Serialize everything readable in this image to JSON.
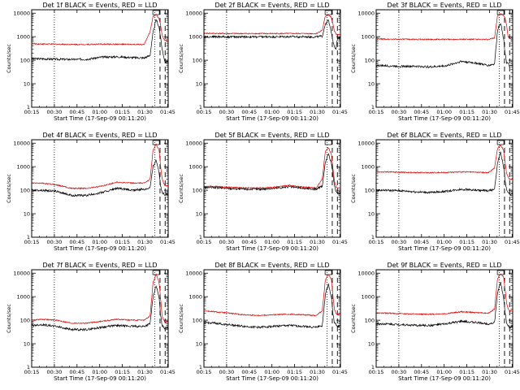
{
  "common": {
    "ylabel": "Counts/sec",
    "xlabel": "Start Time (17-Sep-09 00:11:20)",
    "xticks": [
      "00:15",
      "00:30",
      "00:45",
      "01:00",
      "01:15",
      "01:30",
      "01:45"
    ],
    "yticks": [
      "1",
      "10",
      "100",
      "1000",
      "10000"
    ],
    "black_color": "#000000",
    "red_color": "#dd0000"
  },
  "chart_data": [
    {
      "type": "line",
      "title": "Det 1f BLACK = Events, RED = LLD",
      "xlabel": "Start Time (17-Sep-09 00:11:20)",
      "ylabel": "Counts/sec",
      "yscale": "log",
      "ylim": [
        1,
        14000
      ],
      "xlim_minutes": [
        3.67,
        94
      ],
      "vlines_dotted": [
        18.67,
        85.2
      ],
      "vlines_dashed": [
        88.6,
        92
      ],
      "series": [
        {
          "name": "BLACK = Events",
          "x": [
            4,
            10,
            20,
            30,
            40,
            50,
            60,
            70,
            78,
            82,
            84,
            86,
            88,
            89,
            90,
            91,
            92,
            94
          ],
          "y": [
            115,
            115,
            110,
            108,
            110,
            135,
            140,
            130,
            125,
            160,
            1500,
            5500,
            2500,
            900,
            300,
            150,
            80,
            90
          ]
        },
        {
          "name": "RED = LLD",
          "x": [
            4,
            10,
            20,
            30,
            40,
            50,
            60,
            70,
            78,
            82,
            84,
            86,
            88,
            89,
            90,
            91,
            92,
            94
          ],
          "y": [
            500,
            490,
            480,
            470,
            470,
            480,
            480,
            470,
            460,
            1600,
            7500,
            8500,
            6000,
            3000,
            1200,
            800,
            700,
            700
          ]
        }
      ]
    },
    {
      "type": "line",
      "title": "Det 2f BLACK = Events, RED = LLD",
      "xlabel": "Start Time (17-Sep-09 00:11:20)",
      "ylabel": "Counts/sec",
      "yscale": "log",
      "ylim": [
        1,
        14000
      ],
      "xlim_minutes": [
        3.67,
        94
      ],
      "vlines_dotted": [
        18.67,
        85.2
      ],
      "vlines_dashed": [
        88.6,
        92
      ],
      "series": [
        {
          "name": "BLACK = Events",
          "x": [
            4,
            10,
            20,
            30,
            40,
            50,
            60,
            70,
            78,
            82,
            84,
            86,
            88,
            89,
            90,
            91,
            92,
            94
          ],
          "y": [
            1000,
            1000,
            990,
            990,
            980,
            990,
            1000,
            990,
            980,
            1050,
            3500,
            5000,
            1500,
            700,
            400,
            300,
            800,
            900
          ]
        },
        {
          "name": "RED = LLD",
          "x": [
            4,
            10,
            20,
            30,
            40,
            50,
            60,
            70,
            78,
            82,
            84,
            86,
            88,
            89,
            90,
            91,
            92,
            94
          ],
          "y": [
            1400,
            1380,
            1360,
            1360,
            1360,
            1360,
            1360,
            1360,
            1350,
            1900,
            7500,
            8500,
            6500,
            3500,
            1800,
            1300,
            1200,
            1200
          ]
        }
      ]
    },
    {
      "type": "line",
      "title": "Det 3f BLACK = Events, RED = LLD",
      "xlabel": "Start Time (17-Sep-09 00:11:20)",
      "ylabel": "Counts/sec",
      "yscale": "log",
      "ylim": [
        1,
        14000
      ],
      "xlim_minutes": [
        3.67,
        94
      ],
      "vlines_dotted": [
        18.67,
        85.2
      ],
      "vlines_dashed": [
        88.6,
        92
      ],
      "series": [
        {
          "name": "BLACK = Events",
          "x": [
            4,
            10,
            20,
            30,
            40,
            50,
            60,
            70,
            78,
            82,
            84,
            86,
            88,
            89,
            90,
            91,
            92,
            94
          ],
          "y": [
            60,
            58,
            55,
            55,
            52,
            58,
            90,
            75,
            60,
            70,
            2000,
            4000,
            800,
            200,
            80,
            70,
            55,
            60
          ]
        },
        {
          "name": "RED = LLD",
          "x": [
            4,
            10,
            20,
            30,
            40,
            50,
            60,
            70,
            78,
            82,
            84,
            86,
            88,
            89,
            90,
            91,
            92,
            94
          ],
          "y": [
            800,
            790,
            780,
            770,
            770,
            770,
            780,
            770,
            760,
            900,
            8000,
            9500,
            8000,
            6000,
            3000,
            1000,
            800,
            800
          ]
        }
      ]
    },
    {
      "type": "line",
      "title": "Det 4f BLACK = Events, RED = LLD",
      "xlabel": "Start Time (17-Sep-09 00:11:20)",
      "ylabel": "Counts/sec",
      "yscale": "log",
      "ylim": [
        1,
        14000
      ],
      "xlim_minutes": [
        3.67,
        94
      ],
      "vlines_dotted": [
        18.67,
        85.2
      ],
      "vlines_dashed": [
        88.6,
        92
      ],
      "series": [
        {
          "name": "BLACK = Events",
          "x": [
            4,
            10,
            20,
            30,
            40,
            50,
            60,
            70,
            78,
            82,
            84,
            86,
            88,
            89,
            90,
            91,
            92,
            94
          ],
          "y": [
            100,
            100,
            90,
            60,
            60,
            80,
            120,
            100,
            110,
            130,
            1000,
            2000,
            600,
            150,
            80,
            70,
            65,
            70
          ]
        },
        {
          "name": "RED = LLD",
          "x": [
            4,
            10,
            20,
            30,
            40,
            50,
            60,
            70,
            78,
            82,
            84,
            86,
            88,
            89,
            90,
            91,
            92,
            94
          ],
          "y": [
            200,
            200,
            170,
            120,
            120,
            150,
            220,
            200,
            200,
            300,
            5000,
            9000,
            5000,
            1000,
            300,
            200,
            150,
            160
          ]
        }
      ]
    },
    {
      "type": "line",
      "title": "Det 5f BLACK = Events, RED = LLD",
      "xlabel": "Start Time (17-Sep-09 00:11:20)",
      "ylabel": "Counts/sec",
      "yscale": "log",
      "ylim": [
        1,
        14000
      ],
      "xlim_minutes": [
        3.67,
        94
      ],
      "vlines_dotted": [
        18.67,
        85.2
      ],
      "vlines_dashed": [
        88.6,
        92
      ],
      "series": [
        {
          "name": "BLACK = Events",
          "x": [
            4,
            10,
            20,
            30,
            40,
            50,
            60,
            70,
            78,
            82,
            84,
            86,
            88,
            89,
            90,
            91,
            92,
            94
          ],
          "y": [
            130,
            130,
            120,
            110,
            110,
            120,
            140,
            120,
            110,
            150,
            1500,
            3500,
            1500,
            500,
            150,
            90,
            70,
            75
          ]
        },
        {
          "name": "RED = LLD",
          "x": [
            4,
            10,
            20,
            30,
            40,
            50,
            60,
            70,
            78,
            82,
            84,
            86,
            88,
            89,
            90,
            91,
            92,
            94
          ],
          "y": [
            145,
            145,
            135,
            125,
            125,
            135,
            160,
            135,
            125,
            300,
            4500,
            6500,
            3500,
            900,
            250,
            150,
            120,
            120
          ]
        }
      ]
    },
    {
      "type": "line",
      "title": "Det 6f BLACK = Events, RED = LLD",
      "xlabel": "Start Time (17-Sep-09 00:11:20)",
      "ylabel": "Counts/sec",
      "yscale": "log",
      "ylim": [
        1,
        14000
      ],
      "xlim_minutes": [
        3.67,
        94
      ],
      "vlines_dotted": [
        18.67,
        85.2
      ],
      "vlines_dashed": [
        88.6,
        92
      ],
      "series": [
        {
          "name": "BLACK = Events",
          "x": [
            4,
            10,
            20,
            30,
            40,
            50,
            60,
            70,
            78,
            82,
            84,
            86,
            88,
            89,
            90,
            91,
            92,
            94
          ],
          "y": [
            100,
            100,
            95,
            85,
            80,
            90,
            110,
            100,
            95,
            110,
            1500,
            4000,
            1000,
            250,
            100,
            80,
            65,
            70
          ]
        },
        {
          "name": "RED = LLD",
          "x": [
            4,
            10,
            20,
            30,
            40,
            50,
            60,
            70,
            78,
            82,
            84,
            86,
            88,
            89,
            90,
            91,
            92,
            94
          ],
          "y": [
            600,
            600,
            580,
            560,
            560,
            570,
            600,
            580,
            560,
            900,
            6000,
            8500,
            5000,
            1500,
            500,
            350,
            300,
            300
          ]
        }
      ]
    },
    {
      "type": "line",
      "title": "Det 7f BLACK = Events, RED = LLD",
      "xlabel": "Start Time (17-Sep-09 00:11:20)",
      "ylabel": "Counts/sec",
      "yscale": "log",
      "ylim": [
        1,
        14000
      ],
      "xlim_minutes": [
        3.67,
        94
      ],
      "vlines_dotted": [
        18.67,
        85.2
      ],
      "vlines_dashed": [
        88.6,
        92
      ],
      "series": [
        {
          "name": "BLACK = Events",
          "x": [
            4,
            10,
            20,
            30,
            40,
            50,
            60,
            70,
            78,
            82,
            84,
            86,
            88,
            89,
            90,
            91,
            92,
            94
          ],
          "y": [
            60,
            65,
            55,
            40,
            40,
            50,
            60,
            55,
            55,
            70,
            1000,
            3000,
            900,
            150,
            60,
            50,
            45,
            50
          ]
        },
        {
          "name": "RED = LLD",
          "x": [
            4,
            10,
            20,
            30,
            40,
            50,
            60,
            70,
            78,
            82,
            84,
            86,
            88,
            89,
            90,
            91,
            92,
            94
          ],
          "y": [
            100,
            110,
            100,
            75,
            75,
            90,
            110,
            100,
            100,
            150,
            4000,
            9000,
            4000,
            800,
            150,
            100,
            85,
            90
          ]
        }
      ]
    },
    {
      "type": "line",
      "title": "Det 8f BLACK = Events, RED = LLD",
      "xlabel": "Start Time (17-Sep-09 00:11:20)",
      "ylabel": "Counts/sec",
      "yscale": "log",
      "ylim": [
        1,
        14000
      ],
      "xlim_minutes": [
        3.67,
        94
      ],
      "vlines_dotted": [
        18.67,
        85.2
      ],
      "vlines_dashed": [
        88.6,
        92
      ],
      "series": [
        {
          "name": "BLACK = Events",
          "x": [
            4,
            10,
            20,
            30,
            40,
            50,
            60,
            70,
            78,
            82,
            84,
            86,
            88,
            89,
            90,
            91,
            92,
            94
          ],
          "y": [
            80,
            75,
            65,
            55,
            50,
            55,
            60,
            55,
            50,
            60,
            1200,
            3500,
            1000,
            200,
            80,
            65,
            55,
            60
          ]
        },
        {
          "name": "RED = LLD",
          "x": [
            4,
            10,
            20,
            30,
            40,
            50,
            60,
            70,
            78,
            82,
            84,
            86,
            88,
            89,
            90,
            91,
            92,
            94
          ],
          "y": [
            250,
            230,
            200,
            170,
            160,
            170,
            180,
            170,
            160,
            250,
            5000,
            9000,
            5500,
            1200,
            300,
            200,
            170,
            180
          ]
        }
      ]
    },
    {
      "type": "line",
      "title": "Det 9f BLACK = Events, RED = LLD",
      "xlabel": "Start Time (17-Sep-09 00:11:20)",
      "ylabel": "Counts/sec",
      "yscale": "log",
      "ylim": [
        1,
        14000
      ],
      "xlim_minutes": [
        3.67,
        94
      ],
      "vlines_dotted": [
        18.67,
        85.2
      ],
      "vlines_dashed": [
        88.6,
        92
      ],
      "series": [
        {
          "name": "BLACK = Events",
          "x": [
            4,
            10,
            20,
            30,
            40,
            50,
            60,
            70,
            78,
            82,
            84,
            86,
            88,
            89,
            90,
            91,
            92,
            94
          ],
          "y": [
            70,
            70,
            65,
            60,
            60,
            70,
            90,
            80,
            70,
            80,
            1500,
            4000,
            900,
            200,
            80,
            60,
            50,
            55
          ]
        },
        {
          "name": "RED = LLD",
          "x": [
            4,
            10,
            20,
            30,
            40,
            50,
            60,
            70,
            78,
            82,
            84,
            86,
            88,
            89,
            90,
            91,
            92,
            94
          ],
          "y": [
            200,
            200,
            190,
            180,
            180,
            190,
            230,
            210,
            200,
            300,
            6000,
            9500,
            7000,
            2000,
            500,
            300,
            250,
            260
          ]
        }
      ]
    }
  ]
}
